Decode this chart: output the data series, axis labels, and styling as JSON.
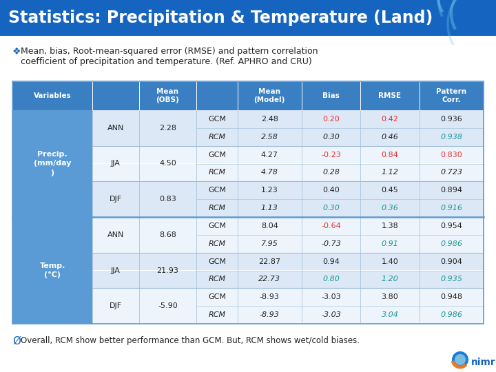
{
  "title": "Statistics: Precipitation & Temperature (Land)",
  "title_bg_top": "#1565c0",
  "title_bg_bot": "#1a7fd4",
  "title_color": "#ffffff",
  "subtitle": "  Mean, bias, Root-mean-squared error (RMSE) and pattern correlation\n  coefficient of precipitation and temperature. (Ref. APHRO and CRU)",
  "subtitle_bullet": "❖",
  "footer": "Overall, RCM show better performance than GCM. But, RCM shows wet/cold biases.",
  "footer_bullet": "Ø",
  "header_bg": "#3a7fc1",
  "header_color": "#ffffff",
  "var_col_bg": "#5b9bd5",
  "table_border": "#5b9bd5",
  "row_bg_even": "#dce8f5",
  "row_bg_odd": "#eef4fb",
  "sep_line_color": "#5b9bd5",
  "grid_color": "#9dbdd8",
  "red_color": "#e63232",
  "teal_color": "#1a9696",
  "black_color": "#222222",
  "table_data": [
    [
      "Precip.\n(mm/day\n)",
      "ANN",
      "2.28",
      "GCM",
      "2.48",
      "0.20",
      "0.42",
      "0.936"
    ],
    [
      "",
      "",
      "",
      "RCM",
      "2.58",
      "0.30",
      "0.46",
      "0.938"
    ],
    [
      "",
      "JJA",
      "4.50",
      "GCM",
      "4.27",
      "-0.23",
      "0.84",
      "0.830"
    ],
    [
      "",
      "",
      "",
      "RCM",
      "4.78",
      "0.28",
      "1.12",
      "0.723"
    ],
    [
      "",
      "DJF",
      "0.83",
      "GCM",
      "1.23",
      "0.40",
      "0.45",
      "0.894"
    ],
    [
      "",
      "",
      "",
      "RCM",
      "1.13",
      "0.30",
      "0.36",
      "0.916"
    ],
    [
      "Temp.\n(°C)",
      "ANN",
      "8.68",
      "GCM",
      "8.04",
      "-0.64",
      "1.38",
      "0.954"
    ],
    [
      "",
      "",
      "",
      "RCM",
      "7.95",
      "-0.73",
      "0.91",
      "0.986"
    ],
    [
      "",
      "JJA",
      "21.93",
      "GCM",
      "22.87",
      "0.94",
      "1.40",
      "0.904"
    ],
    [
      "",
      "",
      "",
      "RCM",
      "22.73",
      "0.80",
      "1.20",
      "0.935"
    ],
    [
      "",
      "DJF",
      "-5.90",
      "GCM",
      "-8.93",
      "-3.03",
      "3.80",
      "0.948"
    ],
    [
      "",
      "",
      "",
      "RCM",
      "-8.93",
      "-3.03",
      "3.04",
      "0.986"
    ]
  ],
  "cell_colors": [
    [
      "",
      "",
      "",
      "",
      "",
      "red",
      "red",
      ""
    ],
    [
      "",
      "",
      "",
      "",
      "",
      "",
      "",
      "teal"
    ],
    [
      "",
      "",
      "",
      "",
      "",
      "red",
      "red",
      "red"
    ],
    [
      "",
      "",
      "",
      "",
      "",
      "",
      "",
      ""
    ],
    [
      "",
      "",
      "",
      "",
      "",
      "",
      "",
      ""
    ],
    [
      "",
      "",
      "",
      "",
      "",
      "teal",
      "teal",
      "teal"
    ],
    [
      "",
      "",
      "",
      "",
      "",
      "red",
      "",
      ""
    ],
    [
      "",
      "",
      "",
      "",
      "",
      "",
      "teal",
      "teal"
    ],
    [
      "",
      "",
      "",
      "",
      "",
      "",
      "",
      ""
    ],
    [
      "",
      "",
      "",
      "",
      "",
      "teal",
      "teal",
      "teal"
    ],
    [
      "",
      "",
      "",
      "",
      "",
      "",
      "",
      ""
    ],
    [
      "",
      "",
      "",
      "",
      "",
      "",
      "teal",
      "teal"
    ]
  ]
}
